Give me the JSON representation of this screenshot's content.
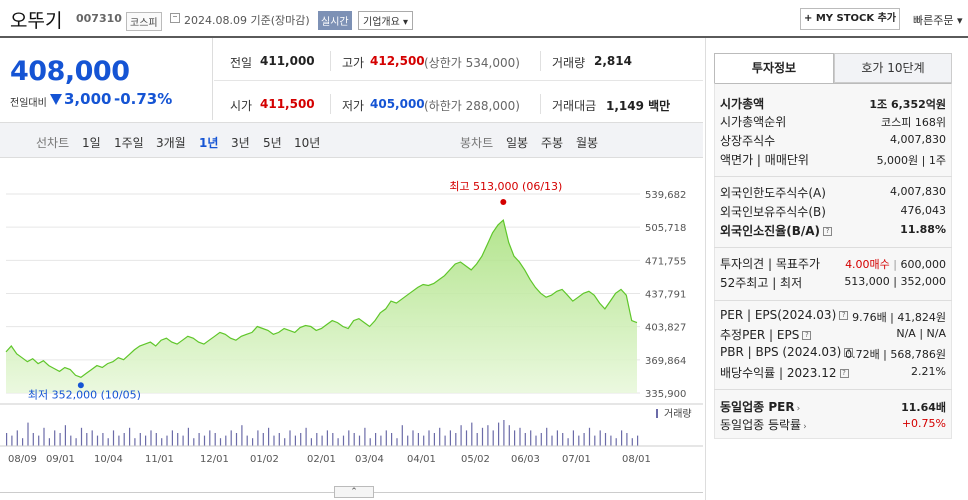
{
  "header": {
    "company": "오뚜기",
    "code": "007310",
    "market": "코스피",
    "date_text": "2024.08.09 기준(장마감)",
    "realtime": "실시간",
    "corp_info": "기업개요",
    "mystock": "+ MY STOCK 추가",
    "fast_order": "빠른주문"
  },
  "price": {
    "current": "408,000",
    "change_label": "전일대비",
    "change": "3,000",
    "change_pct": "-0.73%"
  },
  "info": {
    "prev_label": "전일",
    "prev": "411,000",
    "high_label": "고가",
    "high": "412,500",
    "upper_limit": "(상한가 534,000)",
    "volume_label": "거래량",
    "volume": "2,814",
    "open_label": "시가",
    "open": "411,500",
    "low_label": "저가",
    "low": "405,000",
    "lower_limit": "(하한가 288,000)",
    "amount_label": "거래대금",
    "amount": "1,149 백만"
  },
  "period": {
    "line_label": "선차트",
    "line_items": [
      "1일",
      "1주일",
      "3개월",
      "1년",
      "3년",
      "5년",
      "10년"
    ],
    "active": "1년",
    "candle_label": "봉차트",
    "candle_items": [
      "일봉",
      "주봉",
      "월봉"
    ]
  },
  "chart_data": {
    "type": "area",
    "y_ticks": [
      "539,682",
      "505,718",
      "471,755",
      "437,791",
      "403,827",
      "369,864",
      "335,900"
    ],
    "ylim": [
      335900,
      539682
    ],
    "x_ticks": [
      "08/09",
      "09/01",
      "10/04",
      "11/01",
      "12/01",
      "01/02",
      "02/01",
      "03/04",
      "04/01",
      "05/02",
      "06/03",
      "07/01",
      "08/01"
    ],
    "max_label": "최고 513,000 (06/13)",
    "min_label": "최저 352,000 (10/05)",
    "volume_label": "거래량",
    "values": [
      378000,
      384000,
      376000,
      372000,
      368000,
      371000,
      366000,
      369000,
      364000,
      361000,
      358000,
      362000,
      360000,
      354000,
      352000,
      356000,
      360000,
      364000,
      362000,
      366000,
      368000,
      372000,
      370000,
      375000,
      380000,
      384000,
      386000,
      388000,
      384000,
      390000,
      392000,
      388000,
      386000,
      390000,
      394000,
      392000,
      388000,
      386000,
      390000,
      394000,
      398000,
      396000,
      392000,
      390000,
      394000,
      396000,
      398000,
      404000,
      402000,
      400000,
      396000,
      398000,
      402000,
      400000,
      398000,
      403000,
      405000,
      404000,
      400000,
      402000,
      406000,
      410000,
      408000,
      404000,
      402000,
      410000,
      412000,
      408000,
      404000,
      410000,
      418000,
      422000,
      430000,
      428000,
      432000,
      436000,
      440000,
      444000,
      447000,
      446000,
      448000,
      452000,
      456000,
      462000,
      468000,
      470000,
      466000,
      462000,
      468000,
      476000,
      488000,
      500000,
      508000,
      513000,
      490000,
      476000,
      470000,
      462000,
      452000,
      444000,
      438000,
      434000,
      436000,
      440000,
      442000,
      436000,
      430000,
      434000,
      438000,
      440000,
      436000,
      428000,
      422000,
      430000,
      438000,
      442000,
      436000,
      410000,
      408000
    ],
    "volumes": [
      0.5,
      0.4,
      0.6,
      0.3,
      0.9,
      0.5,
      0.4,
      0.7,
      0.3,
      0.6,
      0.5,
      0.8,
      0.4,
      0.3,
      0.7,
      0.5,
      0.6,
      0.4,
      0.5,
      0.3,
      0.6,
      0.4,
      0.5,
      0.7,
      0.3,
      0.5,
      0.4,
      0.6,
      0.5,
      0.3,
      0.4,
      0.6,
      0.5,
      0.4,
      0.7,
      0.3,
      0.5,
      0.4,
      0.6,
      0.5,
      0.3,
      0.4,
      0.6,
      0.5,
      0.8,
      0.4,
      0.3,
      0.6,
      0.5,
      0.7,
      0.4,
      0.5,
      0.3,
      0.6,
      0.4,
      0.5,
      0.7,
      0.3,
      0.5,
      0.4,
      0.6,
      0.5,
      0.3,
      0.4,
      0.6,
      0.5,
      0.4,
      0.7,
      0.3,
      0.5,
      0.4,
      0.6,
      0.5,
      0.3,
      0.8,
      0.4,
      0.6,
      0.5,
      0.4,
      0.6,
      0.5,
      0.7,
      0.4,
      0.6,
      0.5,
      0.8,
      0.6,
      0.9,
      0.5,
      0.7,
      0.8,
      0.6,
      0.9,
      1.0,
      0.8,
      0.6,
      0.7,
      0.5,
      0.6,
      0.4,
      0.5,
      0.7,
      0.4,
      0.6,
      0.5,
      0.3,
      0.6,
      0.4,
      0.5,
      0.7,
      0.4,
      0.6,
      0.5,
      0.4,
      0.3,
      0.6,
      0.5,
      0.3,
      0.4
    ]
  },
  "right": {
    "tab_active": "투자정보",
    "tab_other": "호가 10단계",
    "rows": [
      {
        "l": "시가총액",
        "v": "1조 6,352억원",
        "bold": true
      },
      {
        "l": "시가총액순위",
        "v": "코스피 168위"
      },
      {
        "l": "상장주식수",
        "v": "4,007,830"
      },
      {
        "l": "액면가 | 매매단위",
        "v": "5,000원 | 1주"
      },
      {
        "l": "외국인한도주식수(A)",
        "v": "4,007,830"
      },
      {
        "l": "외국인보유주식수(B)",
        "v": "476,043"
      },
      {
        "l": "외국인소진율(B/A)",
        "v": "11.88%",
        "bold": true
      },
      {
        "l": "투자의견 | 목표주가",
        "v1": "4.00매수",
        "v2": "600,000"
      },
      {
        "l": "52주최고 | 최저",
        "v": "513,000 | 352,000"
      },
      {
        "l": "PER | EPS(2024.03)",
        "v": "9.76배 | 41,824원"
      },
      {
        "l": "추정PER | EPS",
        "v": "N/A | N/A"
      },
      {
        "l": "PBR | BPS (2024.03)",
        "v": "0.72배 | 568,786원"
      },
      {
        "l": "배당수익률 | 2023.12",
        "v": "2.21%"
      },
      {
        "l": "동일업종 PER",
        "v": "11.64배",
        "bold": true
      },
      {
        "l": "동일업종 등락률",
        "v": "+0.75%"
      }
    ]
  },
  "handle": "⌃"
}
